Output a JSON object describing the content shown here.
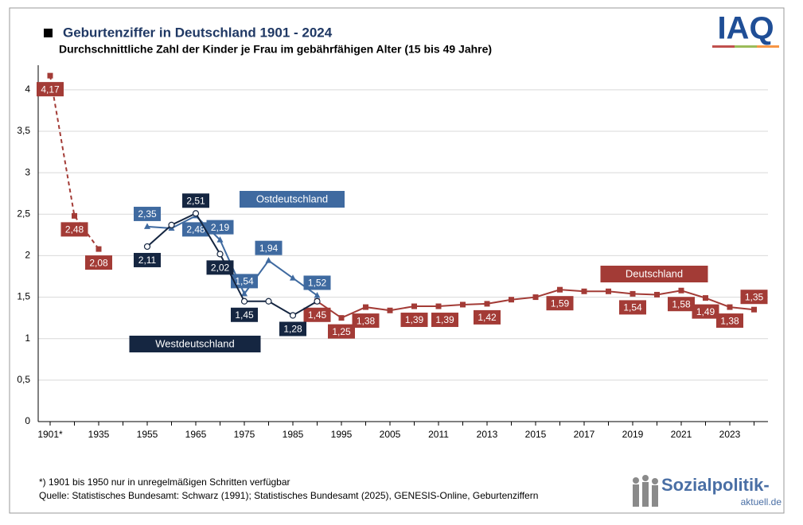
{
  "chart_data": {
    "type": "line",
    "title": "Geburtenziffer in Deutschland 1901 - 2024",
    "subtitle": "Durchschnittliche Zahl der Kinder je Frau im gebährfähigen Alter (15 bis 49 Jahre)",
    "categories": [
      "1901*",
      null,
      "1935",
      null,
      "1955",
      null,
      "1965",
      null,
      "1975",
      null,
      "1985",
      null,
      "1995",
      null,
      "2005",
      null,
      "2011",
      null,
      "2013",
      null,
      "2015",
      null,
      "2017",
      null,
      "2019",
      null,
      "2021",
      null,
      "2023",
      null
    ],
    "ylim": [
      0,
      4.2
    ],
    "yticks": [
      0,
      {
        "value": 0.5,
        "label": "0,5"
      },
      1,
      {
        "value": 1.5,
        "label": "1,5"
      },
      2,
      {
        "value": 2.5,
        "label": "2,5"
      },
      3,
      {
        "value": 3.5,
        "label": "3,5"
      },
      4
    ],
    "grid": true,
    "series": [
      {
        "name": "Deutschland",
        "color": "#a33b36",
        "values": [
          4.17,
          2.48,
          2.08,
          null,
          null,
          null,
          null,
          null,
          null,
          null,
          null,
          1.45,
          1.25,
          1.38,
          1.34,
          1.39,
          1.39,
          1.41,
          1.42,
          1.47,
          1.5,
          1.59,
          1.57,
          1.57,
          1.54,
          1.53,
          1.58,
          1.49,
          1.38,
          1.35
        ],
        "value_labels": [
          "4,17",
          "2,48",
          "2,08",
          null,
          null,
          null,
          null,
          null,
          null,
          null,
          null,
          "1,45",
          "1,25",
          "1,38",
          null,
          "1,39",
          "1,39",
          null,
          "1,42",
          null,
          null,
          "1,59",
          null,
          null,
          "1,54",
          null,
          "1,58",
          "1,49",
          "1,38",
          "1,35"
        ]
      },
      {
        "name": "Ostdeutschland",
        "color": "#3f6aa0",
        "values": [
          null,
          null,
          null,
          null,
          2.35,
          2.33,
          2.48,
          2.19,
          1.54,
          1.94,
          1.73,
          1.52,
          null,
          null,
          null,
          null,
          null,
          null,
          null,
          null,
          null,
          null,
          null,
          null,
          null,
          null,
          null,
          null,
          null,
          null
        ],
        "value_labels": [
          null,
          null,
          null,
          null,
          "2,35",
          null,
          "2,48",
          "2,19",
          "1,54",
          "1,94",
          null,
          "1,52",
          null,
          null,
          null,
          null,
          null,
          null,
          null,
          null,
          null,
          null,
          null,
          null,
          null,
          null,
          null,
          null,
          null,
          null
        ]
      },
      {
        "name": "Westdeutschland",
        "color": "#152641",
        "values": [
          null,
          null,
          null,
          null,
          2.11,
          2.37,
          2.51,
          2.02,
          1.45,
          1.45,
          1.28,
          1.45,
          null,
          null,
          null,
          null,
          null,
          null,
          null,
          null,
          null,
          null,
          null,
          null,
          null,
          null,
          null,
          null,
          null,
          null
        ],
        "value_labels": [
          null,
          null,
          null,
          null,
          "2,11",
          null,
          "2,51",
          "2,02",
          "1,45",
          null,
          "1,28",
          null,
          null,
          null,
          null,
          null,
          null,
          null,
          null,
          null,
          null,
          null,
          null,
          null,
          null,
          null,
          null,
          null,
          null,
          null
        ]
      }
    ]
  },
  "footer": {
    "note": "*) 1901 bis 1950 nur in unregelmäßigen Schritten verfügbar",
    "source": "Quelle: Statistisches Bundesamt: Schwarz (1991); Statistisches Bundesamt (2025), GENESIS-Online, Geburtenziffern"
  },
  "logos": {
    "iaq": "IAQ",
    "sozialpolitik": "Sozialpolitik-",
    "aktuell": "aktuell.de"
  }
}
